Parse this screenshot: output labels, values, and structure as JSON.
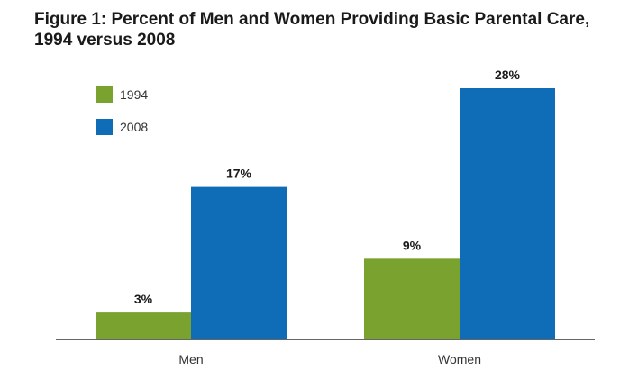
{
  "chart_data": {
    "type": "bar",
    "title": "Figure 1: Percent of Men and Women Providing Basic Parental Care, 1994 versus 2008",
    "title_lines": [
      "Figure 1: Percent of Men and Women Providing Basic Parental Care,",
      "1994 versus 2008"
    ],
    "categories": [
      "Men",
      "Women"
    ],
    "series": [
      {
        "name": "1994",
        "color": "#7aa22f",
        "values": [
          3,
          9
        ],
        "labels": [
          "3%",
          "9%"
        ]
      },
      {
        "name": "2008",
        "color": "#0f6db7",
        "values": [
          17,
          28
        ],
        "labels": [
          "17%",
          "28%"
        ]
      }
    ],
    "xlabel": "",
    "ylabel": "",
    "ylim": [
      0,
      28
    ],
    "grid": false,
    "legend_position": "top-left"
  }
}
